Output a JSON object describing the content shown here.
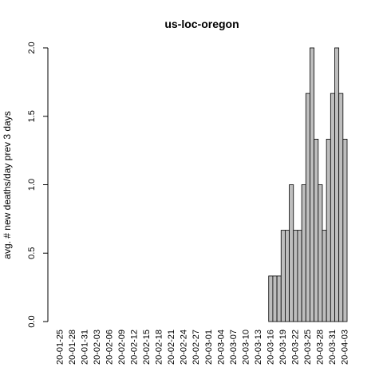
{
  "chart_data": {
    "type": "bar",
    "title": "us-loc-oregon",
    "xlabel": "",
    "ylabel": "avg. # new deaths/day prev  3  days",
    "ylim": [
      0,
      2
    ],
    "yticks": [
      "0.0",
      "0.5",
      "1.0",
      "1.5",
      "2.0"
    ],
    "grid": false,
    "legend": "none",
    "bar_color": "#bebebe",
    "x_tick_labels": [
      "20-01-25",
      "20-01-28",
      "20-01-31",
      "20-02-03",
      "20-02-06",
      "20-02-09",
      "20-02-12",
      "20-02-15",
      "20-02-18",
      "20-02-21",
      "20-02-24",
      "20-02-27",
      "20-03-01",
      "20-03-04",
      "20-03-07",
      "20-03-10",
      "20-03-13",
      "20-03-16",
      "20-03-19",
      "20-03-22",
      "20-03-25",
      "20-03-28",
      "20-03-31",
      "20-04-03"
    ],
    "categories": [
      "20-01-25",
      "20-01-26",
      "20-01-27",
      "20-01-28",
      "20-01-29",
      "20-01-30",
      "20-01-31",
      "20-02-01",
      "20-02-02",
      "20-02-03",
      "20-02-04",
      "20-02-05",
      "20-02-06",
      "20-02-07",
      "20-02-08",
      "20-02-09",
      "20-02-10",
      "20-02-11",
      "20-02-12",
      "20-02-13",
      "20-02-14",
      "20-02-15",
      "20-02-16",
      "20-02-17",
      "20-02-18",
      "20-02-19",
      "20-02-20",
      "20-02-21",
      "20-02-22",
      "20-02-23",
      "20-02-24",
      "20-02-25",
      "20-02-26",
      "20-02-27",
      "20-02-28",
      "20-02-29",
      "20-03-01",
      "20-03-02",
      "20-03-03",
      "20-03-04",
      "20-03-05",
      "20-03-06",
      "20-03-07",
      "20-03-08",
      "20-03-09",
      "20-03-10",
      "20-03-11",
      "20-03-12",
      "20-03-13",
      "20-03-14",
      "20-03-15",
      "20-03-16",
      "20-03-17",
      "20-03-18",
      "20-03-19",
      "20-03-20",
      "20-03-21",
      "20-03-22",
      "20-03-23",
      "20-03-24",
      "20-03-25",
      "20-03-26",
      "20-03-27",
      "20-03-28",
      "20-03-29",
      "20-03-30",
      "20-03-31",
      "20-04-01",
      "20-04-02",
      "20-04-03"
    ],
    "values": [
      0,
      0,
      0,
      0,
      0,
      0,
      0,
      0,
      0,
      0,
      0,
      0,
      0,
      0,
      0,
      0,
      0,
      0,
      0,
      0,
      0,
      0,
      0,
      0,
      0,
      0,
      0,
      0,
      0,
      0,
      0,
      0,
      0,
      0,
      0,
      0,
      0,
      0,
      0,
      0,
      0,
      0,
      0,
      0,
      0,
      0,
      0,
      0,
      0,
      0,
      0,
      0.333,
      0.333,
      0.333,
      0.667,
      0.667,
      1.0,
      0.667,
      0.667,
      1.0,
      1.667,
      2.0,
      1.333,
      1.0,
      0.667,
      1.333,
      1.667,
      2.0,
      1.667,
      1.333
    ]
  }
}
